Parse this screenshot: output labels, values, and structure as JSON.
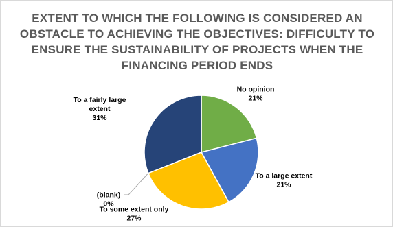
{
  "chart_data": {
    "type": "pie",
    "title_lines": [
      "EXTENT TO WHICH THE FOLLOWING IS CONSIDERED AN",
      "OBSTACLE TO ACHIEVING THE OBJECTIVES: DIFFICULTY TO",
      "ENSURE THE SUSTAINABILITY OF PROJECTS WHEN THE",
      "FINANCING PERIOD ENDS"
    ],
    "start_angle_deg": 0,
    "direction": "clockwise",
    "slices": [
      {
        "label_lines": [
          "No opinion"
        ],
        "percent_label": "21%",
        "value": 21,
        "color": "#70ad47"
      },
      {
        "label_lines": [
          "To a large extent"
        ],
        "percent_label": "21%",
        "value": 21,
        "color": "#4472c4"
      },
      {
        "label_lines": [
          "To some extent only"
        ],
        "percent_label": "27%",
        "value": 27,
        "color": "#ffc000"
      },
      {
        "label_lines": [
          "(blank)"
        ],
        "percent_label": "0%",
        "value": 0,
        "color": "#a5a5a5"
      },
      {
        "label_lines": [
          "To a fairly large",
          "extent"
        ],
        "percent_label": "31%",
        "value": 31,
        "color": "#264478"
      }
    ]
  }
}
